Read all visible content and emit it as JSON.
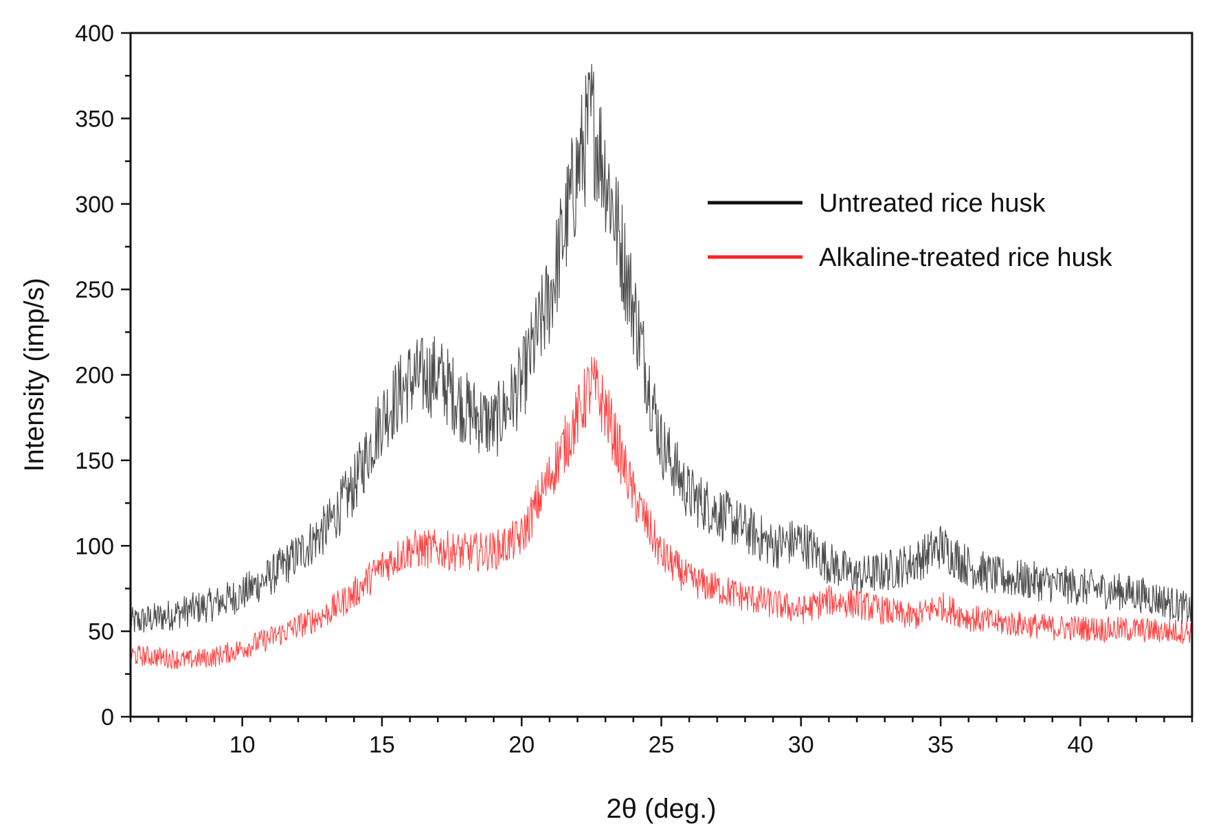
{
  "chart_data": {
    "type": "line",
    "title": "",
    "xlabel": "2θ (deg.)",
    "ylabel": "Intensity (imp/s)",
    "xlim": [
      6,
      44
    ],
    "ylim": [
      0,
      400
    ],
    "x_ticks": [
      10,
      15,
      20,
      25,
      30,
      35,
      40
    ],
    "x_tick_labels": [
      "10",
      "15",
      "20",
      "25",
      "30",
      "35",
      "40"
    ],
    "y_ticks": [
      0,
      50,
      100,
      150,
      200,
      250,
      300,
      350,
      400
    ],
    "y_tick_labels": [
      "0",
      "50",
      "100",
      "150",
      "200",
      "250",
      "300",
      "350",
      "400"
    ],
    "grid": false,
    "legend_position": "top-right",
    "x": [
      6,
      7,
      8,
      9,
      10,
      11,
      12,
      13,
      14,
      15,
      16,
      17,
      18,
      19,
      20,
      21,
      22,
      22.5,
      23,
      24,
      25,
      26,
      27,
      28,
      29,
      30,
      31,
      32,
      33,
      34,
      35,
      36,
      37,
      38,
      39,
      40,
      41,
      42,
      43,
      44
    ],
    "series": [
      {
        "name": "Untreated rice husk",
        "color": "#111111",
        "values": [
          55,
          58,
          62,
          66,
          72,
          82,
          95,
          110,
          135,
          175,
          197,
          200,
          180,
          170,
          195,
          245,
          320,
          350,
          320,
          240,
          160,
          130,
          120,
          110,
          100,
          103,
          90,
          82,
          85,
          90,
          100,
          88,
          82,
          80,
          78,
          76,
          74,
          72,
          68,
          62
        ]
      },
      {
        "name": "Alkaline-treated rice husk",
        "color": "#ff2020",
        "values": [
          36,
          35,
          33,
          35,
          40,
          46,
          53,
          60,
          72,
          88,
          98,
          98,
          96,
          97,
          105,
          140,
          175,
          195,
          180,
          130,
          95,
          80,
          75,
          70,
          66,
          62,
          68,
          66,
          62,
          58,
          65,
          58,
          55,
          54,
          52,
          52,
          51,
          51,
          50,
          50
        ]
      }
    ]
  }
}
